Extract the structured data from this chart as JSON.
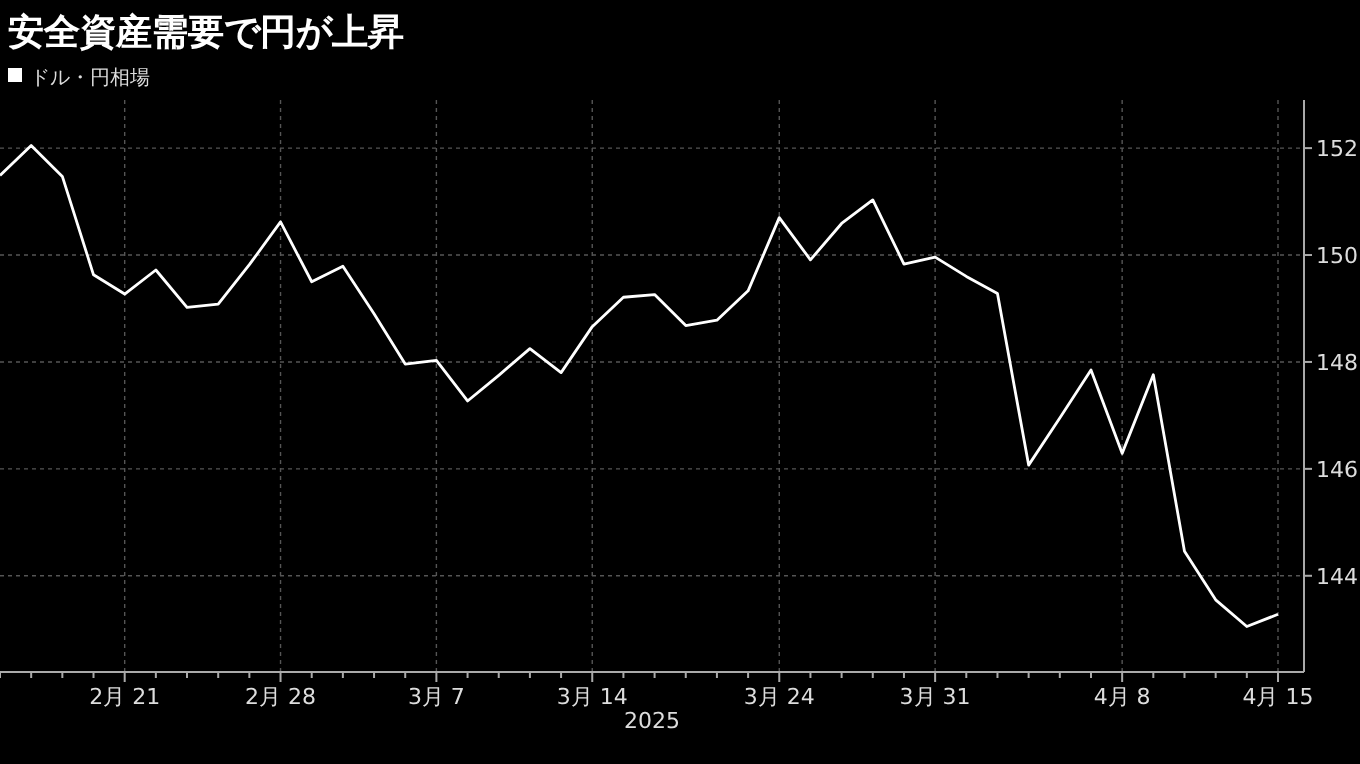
{
  "chart_data": {
    "type": "line",
    "title": "安全資産需要で円が上昇",
    "xlabel": "2025",
    "categories": [
      null,
      null,
      null,
      null,
      "2月 21",
      null,
      null,
      null,
      null,
      "2月 28",
      null,
      null,
      null,
      null,
      "3月 7",
      null,
      null,
      null,
      null,
      "3月 14",
      null,
      null,
      null,
      null,
      null,
      "3月 24",
      null,
      null,
      null,
      null,
      "3月 31",
      null,
      null,
      null,
      null,
      null,
      "4月 8",
      null,
      null,
      null,
      null,
      "4月 15"
    ],
    "series": [
      {
        "name": "ドル・円相場",
        "color": "#ffffff",
        "values": [
          151.49,
          152.05,
          151.47,
          149.63,
          149.27,
          149.72,
          149.02,
          149.08,
          149.82,
          150.62,
          149.5,
          149.79,
          148.9,
          147.96,
          148.03,
          147.27,
          147.75,
          148.25,
          147.8,
          148.66,
          149.21,
          149.26,
          148.68,
          148.78,
          149.33,
          150.7,
          149.91,
          150.59,
          151.03,
          149.83,
          149.96,
          149.6,
          149.28,
          146.07,
          146.95,
          147.85,
          146.29,
          147.76,
          144.46,
          143.55,
          143.05,
          143.28
        ]
      }
    ],
    "ylim": [
      142.2,
      152.9
    ],
    "yticks": [
      144,
      146,
      148,
      150,
      152
    ],
    "grid": true,
    "legend": "top left"
  }
}
